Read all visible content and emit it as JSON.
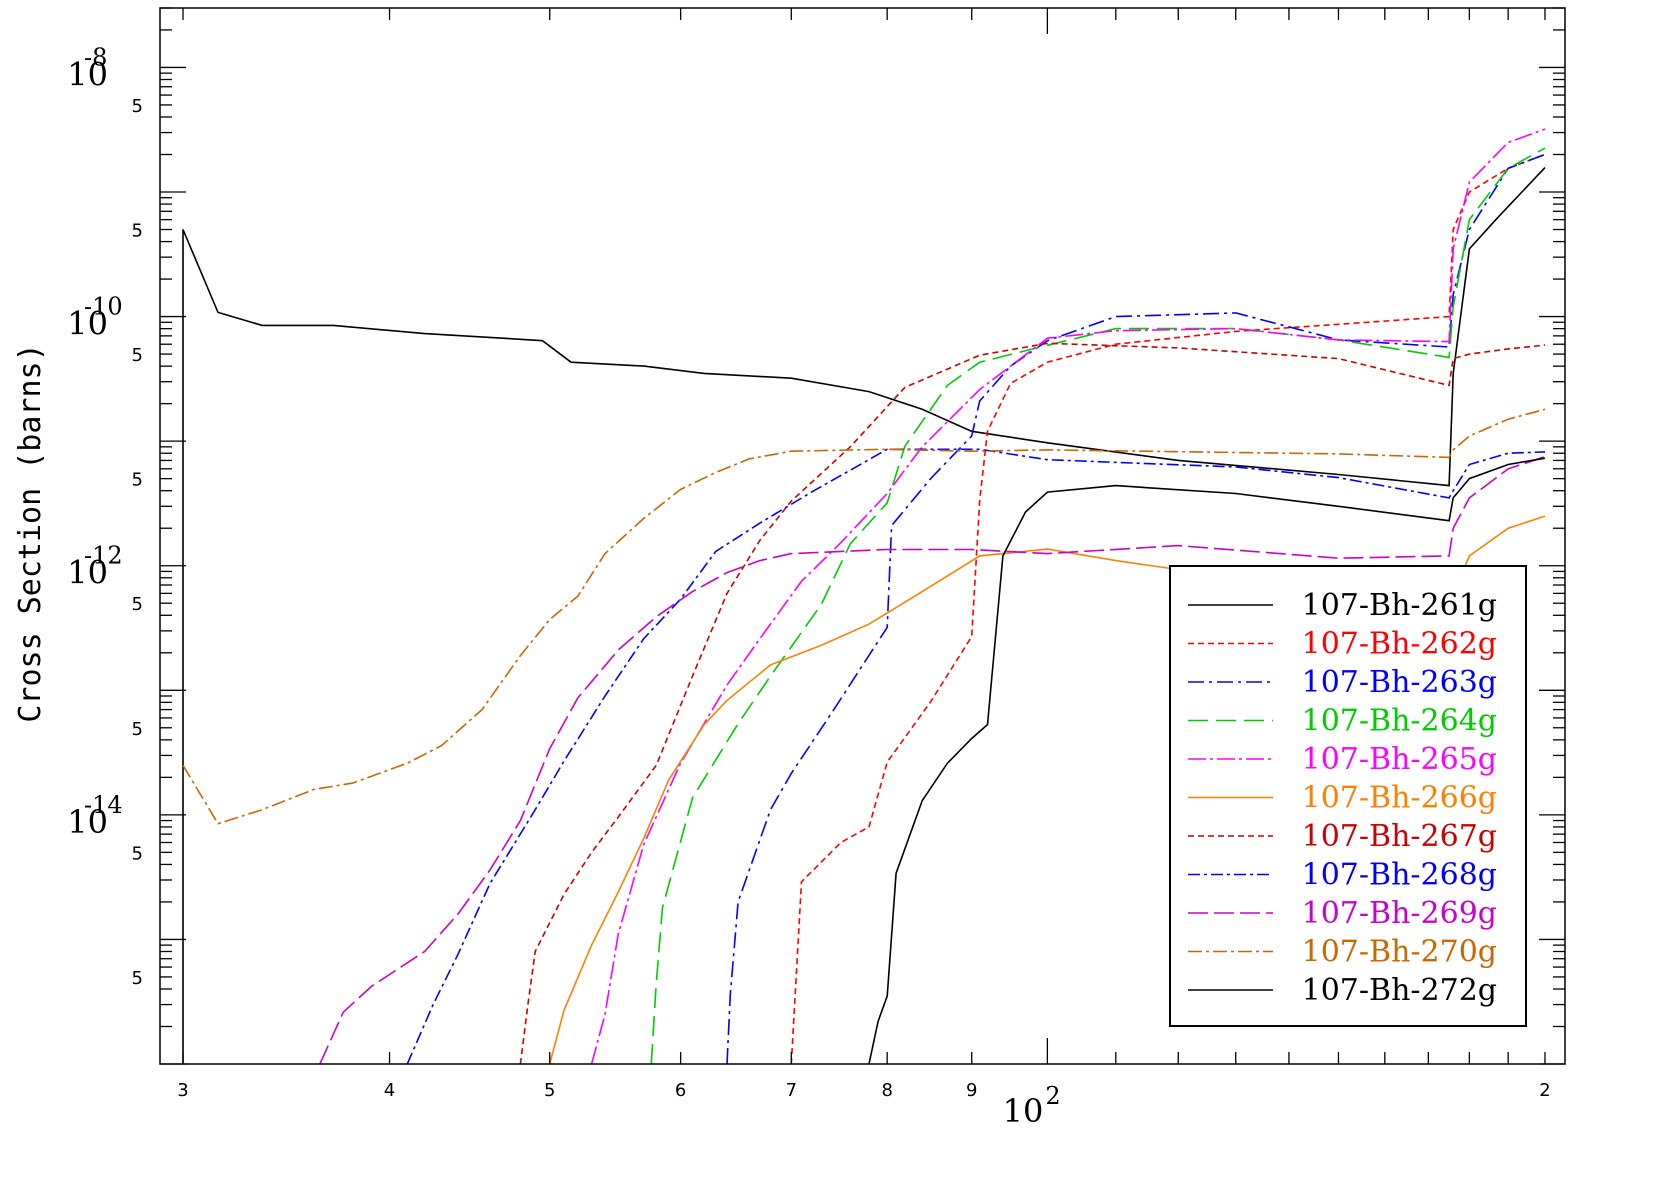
{
  "chart_data": {
    "type": "line",
    "title": "",
    "xlabel": "",
    "ylabel": "Cross Section (barns)",
    "xscale": "log",
    "yscale": "log",
    "xlim": [
      30,
      200
    ],
    "ylim": [
      1e-16,
      3e-08
    ],
    "grid": false,
    "legend_position": "bottom-right",
    "x_ticks": [
      {
        "value": 30,
        "label": "3"
      },
      {
        "value": 40,
        "label": "4"
      },
      {
        "value": 50,
        "label": "5"
      },
      {
        "value": 60,
        "label": "6"
      },
      {
        "value": 70,
        "label": "7"
      },
      {
        "value": 80,
        "label": "8"
      },
      {
        "value": 90,
        "label": "9"
      },
      {
        "value": 200,
        "label": "2"
      }
    ],
    "x_decade_label": {
      "value": 100,
      "base": "10",
      "exponent": "2"
    },
    "y_decades": [
      {
        "value": 1e-08,
        "base": "10",
        "exponent": "-8"
      },
      {
        "value": 1e-10,
        "base": "10",
        "exponent": "-10"
      },
      {
        "value": 1e-12,
        "base": "10",
        "exponent": "-12"
      },
      {
        "value": 1e-14,
        "base": "10",
        "exponent": "-14"
      }
    ],
    "y_minor_labels": [
      {
        "value": 5e-09,
        "label": "5"
      },
      {
        "value": 5e-10,
        "label": "5"
      },
      {
        "value": 5e-11,
        "label": "5"
      },
      {
        "value": 5e-12,
        "label": "5"
      },
      {
        "value": 5e-13,
        "label": "5"
      },
      {
        "value": 5e-14,
        "label": "5"
      },
      {
        "value": 5e-15,
        "label": "5"
      },
      {
        "value": 5e-16,
        "label": "5"
      }
    ],
    "series": [
      {
        "name": "107-Bh-261g",
        "color": "#000000",
        "dash": "solid",
        "points": [
          [
            30,
            1e-16
          ],
          [
            30,
            5e-10
          ],
          [
            31.5,
            1.08e-10
          ],
          [
            33.5,
            8.5e-11
          ],
          [
            37,
            8.5e-11
          ],
          [
            42,
            7.3e-11
          ],
          [
            46,
            6.8e-11
          ],
          [
            49.5,
            6.4e-11
          ],
          [
            51.5,
            4.3e-11
          ],
          [
            57,
            4e-11
          ],
          [
            62,
            3.5e-11
          ],
          [
            70,
            3.2e-11
          ],
          [
            78,
            2.5e-11
          ],
          [
            84,
            1.8e-11
          ],
          [
            90,
            1.2e-11
          ],
          [
            100,
            9.7e-12
          ],
          [
            120,
            7e-12
          ],
          [
            150,
            5.4e-12
          ],
          [
            175,
            4.4e-12
          ],
          [
            176,
            3.5e-11
          ],
          [
            180,
            3.5e-10
          ],
          [
            187,
            6.1e-10
          ],
          [
            200,
            1.57e-09
          ]
        ]
      },
      {
        "name": "107-Bh-262g",
        "color": "#ff0000",
        "dash": "6,4",
        "points": [
          [
            70,
            1e-16
          ],
          [
            71,
            2.9e-15
          ],
          [
            75,
            6e-15
          ],
          [
            78,
            8e-15
          ],
          [
            80,
            2.65e-14
          ],
          [
            85,
            8.1e-14
          ],
          [
            90,
            2.7e-13
          ],
          [
            91,
            3.35e-12
          ],
          [
            92,
            1.2e-11
          ],
          [
            95,
            2.9e-11
          ],
          [
            100,
            4.3e-11
          ],
          [
            110,
            6e-11
          ],
          [
            130,
            7.6e-11
          ],
          [
            175,
            1e-10
          ],
          [
            176,
            5e-10
          ],
          [
            180,
            1e-09
          ],
          [
            190,
            1.55e-09
          ],
          [
            200,
            2e-09
          ]
        ]
      },
      {
        "name": "107-Bh-263g",
        "color": "#0000ff",
        "dash": "16,5,3,5",
        "points": [
          [
            64,
            1e-16
          ],
          [
            64.3,
            3.6e-16
          ],
          [
            65,
            2e-15
          ],
          [
            68,
            1.1e-14
          ],
          [
            70,
            2.15e-14
          ],
          [
            74,
            6.5e-14
          ],
          [
            80,
            3.2e-13
          ],
          [
            80.5,
            2.1e-12
          ],
          [
            85,
            5e-12
          ],
          [
            90,
            1.1e-11
          ],
          [
            91,
            2.1e-11
          ],
          [
            95,
            4e-11
          ],
          [
            100,
            6.4e-11
          ],
          [
            110,
            1e-10
          ],
          [
            130,
            1.07e-10
          ],
          [
            150,
            6.5e-11
          ],
          [
            175,
            5.7e-11
          ],
          [
            176,
            1.5e-10
          ],
          [
            180,
            5e-10
          ],
          [
            190,
            1.55e-09
          ],
          [
            200,
            2e-09
          ]
        ]
      },
      {
        "name": "107-Bh-264g",
        "color": "#00cc00",
        "dash": "20,8",
        "points": [
          [
            57.6,
            1e-16
          ],
          [
            58,
            4.5e-16
          ],
          [
            58.5,
            1.8e-15
          ],
          [
            61,
            1.37e-14
          ],
          [
            65,
            5.4e-14
          ],
          [
            68,
            1.3e-13
          ],
          [
            73,
            4.9e-13
          ],
          [
            76,
            1.5e-12
          ],
          [
            80,
            3.2e-12
          ],
          [
            82,
            9.1e-12
          ],
          [
            87,
            2.8e-11
          ],
          [
            91,
            4.3e-11
          ],
          [
            98,
            5.5e-11
          ],
          [
            110,
            8e-11
          ],
          [
            130,
            8e-11
          ],
          [
            150,
            6.5e-11
          ],
          [
            175,
            4.7e-11
          ],
          [
            176,
            1.2e-10
          ],
          [
            180,
            6e-10
          ],
          [
            190,
            1.55e-09
          ],
          [
            200,
            2.25e-09
          ]
        ]
      },
      {
        "name": "107-Bh-265g",
        "color": "#ff00ff",
        "dash": "18,4,3,4",
        "points": [
          [
            53,
            1e-16
          ],
          [
            54,
            2.5e-16
          ],
          [
            55,
            1.1e-15
          ],
          [
            57,
            5.8e-15
          ],
          [
            60,
            2.6e-14
          ],
          [
            64,
            1.1e-13
          ],
          [
            67,
            2.6e-13
          ],
          [
            71,
            7.5e-13
          ],
          [
            75,
            1.53e-12
          ],
          [
            80,
            3.8e-12
          ],
          [
            84,
            9e-12
          ],
          [
            91,
            2.6e-11
          ],
          [
            100,
            6.7e-11
          ],
          [
            110,
            7.7e-11
          ],
          [
            130,
            8e-11
          ],
          [
            150,
            6.5e-11
          ],
          [
            175,
            6.3e-11
          ],
          [
            176,
            3.5e-10
          ],
          [
            180,
            1.2e-09
          ],
          [
            190,
            2.5e-09
          ],
          [
            200,
            3.2e-09
          ]
        ]
      },
      {
        "name": "107-Bh-266g",
        "color": "#ff8000",
        "dash": "solid",
        "points": [
          [
            50,
            1e-16
          ],
          [
            51,
            2.7e-16
          ],
          [
            53,
            9e-16
          ],
          [
            55,
            2.4e-15
          ],
          [
            57,
            6.5e-15
          ],
          [
            59,
            1.9e-14
          ],
          [
            62,
            5.3e-14
          ],
          [
            64,
            8.3e-14
          ],
          [
            68,
            1.6e-13
          ],
          [
            73,
            2.3e-13
          ],
          [
            78,
            3.4e-13
          ],
          [
            84,
            6.2e-13
          ],
          [
            91,
            1.2e-12
          ],
          [
            100,
            1.36e-12
          ],
          [
            110,
            1.1e-12
          ],
          [
            130,
            8e-13
          ],
          [
            150,
            6e-13
          ],
          [
            175,
            3.7e-13
          ],
          [
            176,
            6e-13
          ],
          [
            180,
            1.2e-12
          ],
          [
            190,
            2e-12
          ],
          [
            200,
            2.5e-12
          ]
        ]
      },
      {
        "name": "107-Bh-267g",
        "color": "#cc0000",
        "dash": "6,4",
        "points": [
          [
            48,
            1e-16
          ],
          [
            48.5,
            3e-16
          ],
          [
            49,
            8e-16
          ],
          [
            51,
            2.3e-15
          ],
          [
            53,
            5e-15
          ],
          [
            55,
            9.6e-15
          ],
          [
            58,
            2.5e-14
          ],
          [
            61,
            1.3e-13
          ],
          [
            64,
            6e-13
          ],
          [
            67,
            1.6e-12
          ],
          [
            70,
            3.3e-12
          ],
          [
            76,
            9e-12
          ],
          [
            82,
            2.7e-11
          ],
          [
            91,
            4.9e-11
          ],
          [
            100,
            6.1e-11
          ],
          [
            120,
            5.6e-11
          ],
          [
            150,
            4.6e-11
          ],
          [
            175,
            2.8e-11
          ],
          [
            176,
            4.6e-11
          ],
          [
            180,
            5e-11
          ],
          [
            190,
            5.5e-11
          ],
          [
            200,
            5.9e-11
          ]
        ]
      },
      {
        "name": "107-Bh-268g",
        "color": "#0000ff",
        "dash": "12,4,3,4",
        "points": [
          [
            41,
            1e-16
          ],
          [
            42.5,
            3e-16
          ],
          [
            44,
            7.6e-16
          ],
          [
            46,
            2.8e-15
          ],
          [
            49,
            1.1e-14
          ],
          [
            51,
            2.7e-14
          ],
          [
            54,
            9e-14
          ],
          [
            57,
            2.6e-13
          ],
          [
            60,
            5.4e-13
          ],
          [
            63,
            1.3e-12
          ],
          [
            67,
            2.2e-12
          ],
          [
            72,
            3.9e-12
          ],
          [
            80,
            8.6e-12
          ],
          [
            91,
            8.6e-12
          ],
          [
            100,
            7.1e-12
          ],
          [
            130,
            6.2e-12
          ],
          [
            150,
            5.1e-12
          ],
          [
            175,
            3.5e-12
          ],
          [
            176,
            4e-12
          ],
          [
            180,
            6.5e-12
          ],
          [
            190,
            8e-12
          ],
          [
            200,
            8.2e-12
          ]
        ]
      },
      {
        "name": "107-Bh-269g",
        "color": "#cc00cc",
        "dash": "20,6",
        "points": [
          [
            36.3,
            1e-16
          ],
          [
            37.5,
            2.6e-16
          ],
          [
            39,
            4.2e-16
          ],
          [
            42,
            8e-16
          ],
          [
            44,
            1.6e-15
          ],
          [
            46,
            3.6e-15
          ],
          [
            48,
            9e-15
          ],
          [
            50,
            3.4e-14
          ],
          [
            52,
            8.7e-14
          ],
          [
            55,
            2.1e-13
          ],
          [
            58,
            3.9e-13
          ],
          [
            61,
            6.2e-13
          ],
          [
            64,
            8.8e-13
          ],
          [
            67,
            1.1e-12
          ],
          [
            70,
            1.25e-12
          ],
          [
            80,
            1.35e-12
          ],
          [
            90,
            1.35e-12
          ],
          [
            100,
            1.25e-12
          ],
          [
            120,
            1.45e-12
          ],
          [
            150,
            1.15e-12
          ],
          [
            175,
            1.2e-12
          ],
          [
            176,
            2e-12
          ],
          [
            180,
            3.5e-12
          ],
          [
            190,
            6e-12
          ],
          [
            200,
            7.5e-12
          ]
        ]
      },
      {
        "name": "107-Bh-270g",
        "color": "#cc6600",
        "dash": "14,4,3,4",
        "points": [
          [
            30,
            2.5e-14
          ],
          [
            31.5,
            8.5e-15
          ],
          [
            33.5,
            1.1e-14
          ],
          [
            36,
            1.6e-14
          ],
          [
            38,
            1.8e-14
          ],
          [
            41,
            2.6e-14
          ],
          [
            43,
            3.6e-14
          ],
          [
            45.5,
            7e-14
          ],
          [
            48,
            1.9e-13
          ],
          [
            50,
            3.7e-13
          ],
          [
            52,
            5.7e-13
          ],
          [
            54,
            1.25e-12
          ],
          [
            57,
            2.4e-12
          ],
          [
            60,
            4.1e-12
          ],
          [
            63,
            5.6e-12
          ],
          [
            66,
            7.2e-12
          ],
          [
            70,
            8.3e-12
          ],
          [
            80,
            8.6e-12
          ],
          [
            90,
            8.3e-12
          ],
          [
            100,
            8.5e-12
          ],
          [
            150,
            7.9e-12
          ],
          [
            175,
            7.4e-12
          ],
          [
            176,
            8.5e-12
          ],
          [
            180,
            1.1e-11
          ],
          [
            190,
            1.5e-11
          ],
          [
            200,
            1.8e-11
          ]
        ]
      },
      {
        "name": "107-Bh-272g",
        "color": "#000000",
        "dash": "solid",
        "points": [
          [
            78,
            1e-16
          ],
          [
            79,
            2.2e-16
          ],
          [
            80,
            3.5e-16
          ],
          [
            81,
            3.4e-15
          ],
          [
            84,
            1.3e-14
          ],
          [
            87,
            2.6e-14
          ],
          [
            90,
            4.1e-14
          ],
          [
            92,
            5.3e-14
          ],
          [
            94,
            1.2e-12
          ],
          [
            97,
            2.7e-12
          ],
          [
            100,
            3.9e-12
          ],
          [
            110,
            4.4e-12
          ],
          [
            130,
            3.8e-12
          ],
          [
            150,
            3e-12
          ],
          [
            175,
            2.3e-12
          ],
          [
            176,
            3.5e-12
          ],
          [
            180,
            5e-12
          ],
          [
            190,
            6.5e-12
          ],
          [
            200,
            7.3e-12
          ]
        ]
      }
    ]
  }
}
